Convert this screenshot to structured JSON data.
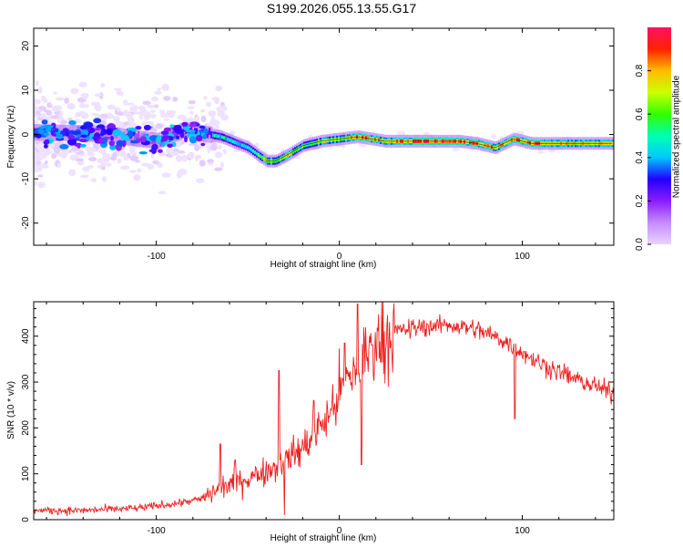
{
  "page_title": "S199.2026.055.13.55.G17",
  "colors": {
    "snr_line": "#ee2020",
    "ridge": "#1d1d1d",
    "scatter": "#b06bff"
  },
  "chart_data": [
    {
      "type": "heatmap",
      "name": "spectrogram",
      "xlabel": "Height of straight line (km)",
      "ylabel": "Frequency (Hz)",
      "xlim": [
        -167,
        150
      ],
      "ylim": [
        -25,
        24
      ],
      "xticks": [
        -100,
        0,
        100
      ],
      "xtick_labels": [
        "-100",
        "0",
        "100"
      ],
      "yticks": [
        -20,
        -10,
        0,
        10,
        20
      ],
      "ytick_labels": [
        "-20",
        "-10",
        "0",
        "10",
        "20"
      ],
      "colorbar": {
        "label": "Normalized spectral amplitude",
        "range": [
          0,
          1
        ],
        "ticks": [
          0.0,
          0.2,
          0.4,
          0.6,
          0.8
        ],
        "tick_labels": [
          "0.0",
          "0.2",
          "0.4",
          "0.6",
          "0.8"
        ],
        "colors": [
          "#e8d4ff",
          "#c58bff",
          "#8a1dff",
          "#2200ff",
          "#00c8ff",
          "#00ffb0",
          "#33ff00",
          "#ccff00",
          "#ffbb00",
          "#ff2200",
          "#ff1166"
        ]
      },
      "ridge_x": [
        -167,
        -130,
        -100,
        -85,
        -65,
        -50,
        -40,
        -35,
        -28,
        -20,
        -10,
        0,
        10,
        25,
        45,
        65,
        75,
        85,
        95,
        105,
        125,
        150
      ],
      "ridge_freq": [
        0.5,
        0.2,
        -1.5,
        1.0,
        -0.5,
        -3.0,
        -6.0,
        -6.0,
        -4.5,
        -2.5,
        -1.5,
        -1.0,
        -0.5,
        -1.5,
        -1.5,
        -1.5,
        -2.0,
        -3.0,
        -1.0,
        -2.0,
        -2.0,
        -2.0
      ],
      "ridge_amplitude": [
        0.2,
        0.2,
        0.3,
        0.45,
        0.5,
        0.45,
        0.8,
        0.7,
        0.75,
        0.6,
        0.7,
        0.75,
        0.95,
        0.75,
        0.95,
        0.9,
        0.9,
        0.8,
        0.85,
        0.95,
        0.8,
        0.75
      ]
    },
    {
      "type": "line",
      "name": "snr",
      "xlabel": "Height of straight line (km)",
      "ylabel": "SNR (10 * v/v)",
      "xlim": [
        -167,
        150
      ],
      "ylim": [
        0,
        475
      ],
      "xticks": [
        -100,
        0,
        100
      ],
      "xtick_labels": [
        "-100",
        "0",
        "100"
      ],
      "yticks": [
        0,
        100,
        200,
        300,
        400
      ],
      "ytick_labels": [
        "0",
        "100",
        "200",
        "300",
        "400"
      ],
      "trend_x": [
        -167,
        -140,
        -110,
        -90,
        -75,
        -65,
        -50,
        -35,
        -20,
        -5,
        0,
        10,
        20,
        30,
        45,
        60,
        75,
        90,
        110,
        130,
        150
      ],
      "trend_y": [
        20,
        20,
        25,
        35,
        45,
        70,
        90,
        115,
        155,
        230,
        280,
        330,
        390,
        410,
        420,
        425,
        415,
        390,
        340,
        305,
        275
      ],
      "spikes": [
        {
          "x": -65,
          "y": 165
        },
        {
          "x": -57,
          "y": 130
        },
        {
          "x": -33,
          "y": 325
        },
        {
          "x": -30,
          "y": 10
        },
        {
          "x": -14,
          "y": 260
        },
        {
          "x": 3,
          "y": 385
        },
        {
          "x": 10,
          "y": 470
        },
        {
          "x": 12,
          "y": 120
        },
        {
          "x": 96,
          "y": 220
        }
      ]
    }
  ]
}
